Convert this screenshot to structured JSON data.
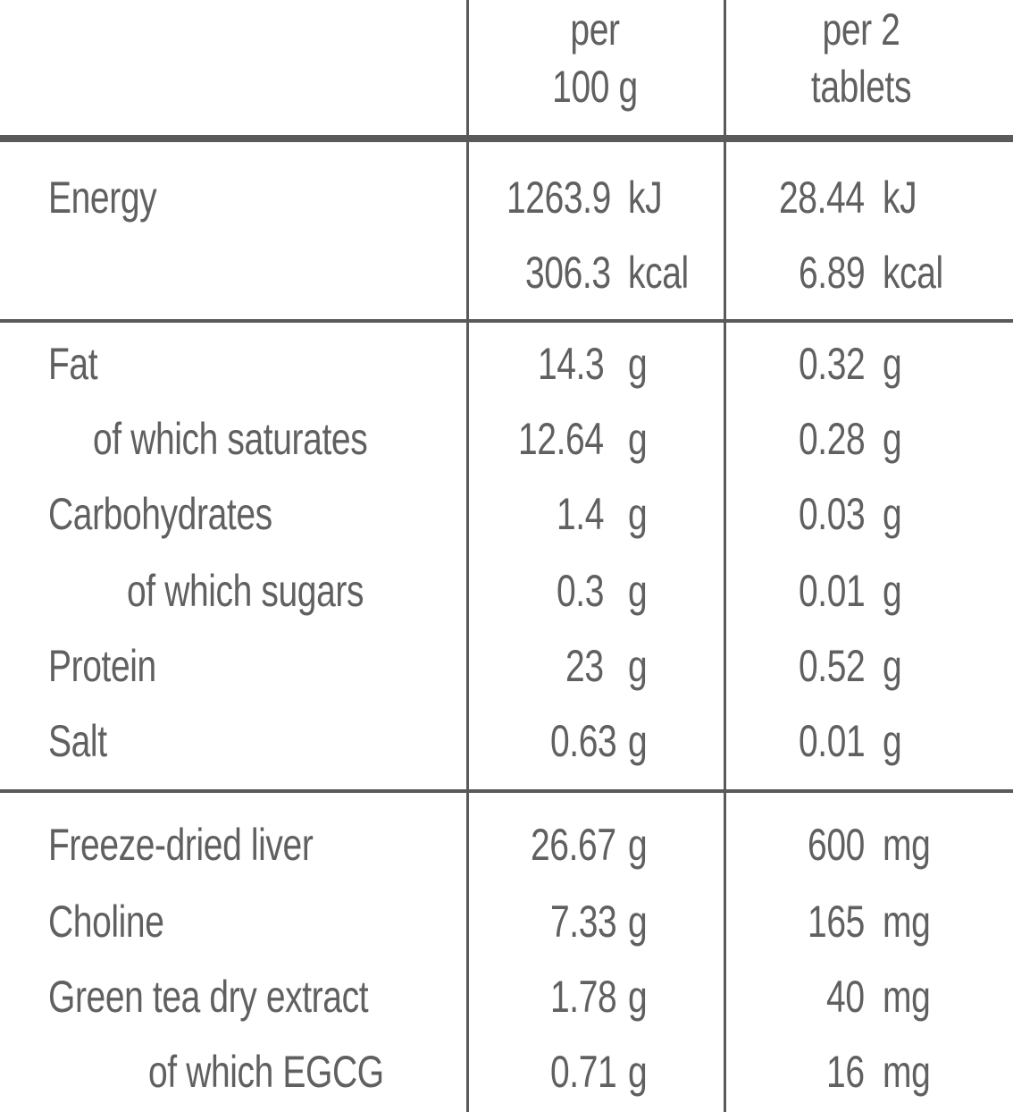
{
  "header": {
    "col1": [
      "per",
      "100 g"
    ],
    "col2": [
      "per 2",
      "tablets"
    ]
  },
  "energy": {
    "label": "Energy",
    "per100_kj": "1263.9",
    "per100_kj_unit": "kJ",
    "per100_kcal": "306.3",
    "per100_kcal_unit": "kcal",
    "per2_kj": "28.44",
    "per2_kj_unit": "kJ",
    "per2_kcal": "6.89",
    "per2_kcal_unit": "kcal"
  },
  "nutrients": [
    {
      "label": "Fat",
      "v100": "14.3",
      "u100": "g",
      "v2": "0.32",
      "u2": "g"
    },
    {
      "label": "of which saturates",
      "v100": "12.64",
      "u100": "g",
      "v2": "0.28",
      "u2": "g"
    },
    {
      "label": "Carbohydrates",
      "v100": "1.4",
      "u100": "g",
      "v2": "0.03",
      "u2": "g"
    },
    {
      "label": "of which sugars",
      "v100": "0.3",
      "u100": "g",
      "v2": "0.01",
      "u2": "g"
    },
    {
      "label": "Protein",
      "v100": "23",
      "u100": "g",
      "v2": "0.52",
      "u2": "g"
    },
    {
      "label": "Salt",
      "v100": "0.63",
      "u100": "g",
      "v2": "0.01",
      "u2": "g"
    }
  ],
  "ingredients": [
    {
      "label": "Freeze-dried liver",
      "v100": "26.67",
      "u100": "g",
      "v2": "600",
      "u2": "mg"
    },
    {
      "label": "Choline",
      "v100": "7.33",
      "u100": "g",
      "v2": "165",
      "u2": "mg"
    },
    {
      "label": "Green tea dry extract",
      "v100": "1.78",
      "u100": "g",
      "v2": "40",
      "u2": "mg"
    },
    {
      "label": "of which EGCG",
      "v100": "0.71",
      "u100": "g",
      "v2": "16",
      "u2": "mg"
    }
  ]
}
